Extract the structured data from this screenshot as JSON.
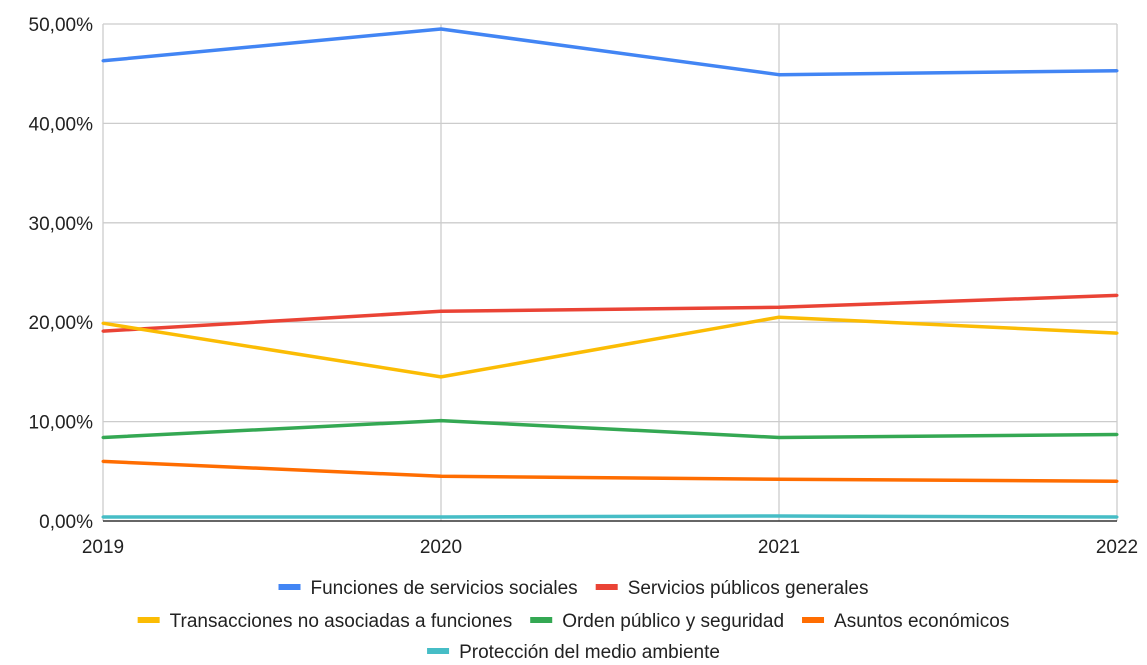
{
  "chart_data": {
    "type": "line",
    "title": "",
    "xlabel": "",
    "ylabel": "",
    "categories": [
      "2019",
      "2020",
      "2021",
      "2022"
    ],
    "ylim": [
      0,
      50
    ],
    "yticks": [
      0,
      10,
      20,
      30,
      40,
      50
    ],
    "ytick_labels": [
      "0,00%",
      "10,00%",
      "20,00%",
      "30,00%",
      "40,00%",
      "50,00%"
    ],
    "grid": true,
    "legend_position": "bottom",
    "series": [
      {
        "name": "Funciones de servicios sociales",
        "color": "#4285F4",
        "values": [
          46.3,
          49.5,
          44.9,
          45.3
        ]
      },
      {
        "name": "Servicios públicos generales",
        "color": "#EA4335",
        "values": [
          19.1,
          21.1,
          21.5,
          22.7
        ]
      },
      {
        "name": "Transacciones no asociadas a funciones",
        "color": "#FBBC04",
        "values": [
          19.9,
          14.5,
          20.5,
          18.9
        ]
      },
      {
        "name": "Orden público y seguridad",
        "color": "#34A853",
        "values": [
          8.4,
          10.1,
          8.4,
          8.7
        ]
      },
      {
        "name": "Asuntos económicos",
        "color": "#FF6D01",
        "values": [
          6.0,
          4.5,
          4.2,
          4.0
        ]
      },
      {
        "name": "Protección del medio ambiente",
        "color": "#46BDC6",
        "values": [
          0.4,
          0.4,
          0.5,
          0.4
        ]
      }
    ]
  }
}
